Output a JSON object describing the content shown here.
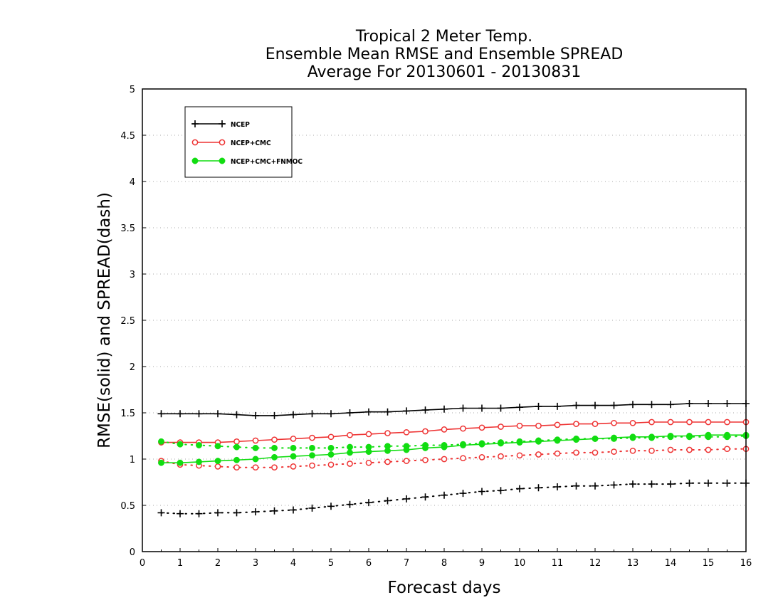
{
  "chart_data": {
    "type": "line",
    "title_lines": [
      "Tropical 2 Meter Temp.",
      "Ensemble Mean RMSE and Ensemble SPREAD",
      "Average For 20130601 - 20130831"
    ],
    "xlabel": "Forecast days",
    "ylabel": "RMSE(solid) and SPREAD(dash)",
    "xlim": [
      0,
      16
    ],
    "ylim": [
      0,
      5
    ],
    "x_ticks": [
      0,
      1,
      2,
      3,
      4,
      5,
      6,
      7,
      8,
      9,
      10,
      11,
      12,
      13,
      14,
      15,
      16
    ],
    "y_ticks": [
      0,
      0.5,
      1,
      1.5,
      2,
      2.5,
      3,
      3.5,
      4,
      4.5,
      5
    ],
    "y_tick_labels": [
      "0",
      "0.5",
      "1",
      "1.5",
      "2",
      "2.5",
      "3",
      "3.5",
      "4",
      "4.5",
      "5"
    ],
    "grid": true,
    "legend_position": "top-left",
    "x": [
      0.5,
      1,
      1.5,
      2,
      2.5,
      3,
      3.5,
      4,
      4.5,
      5,
      5.5,
      6,
      6.5,
      7,
      7.5,
      8,
      8.5,
      9,
      9.5,
      10,
      10.5,
      11,
      11.5,
      12,
      12.5,
      13,
      13.5,
      14,
      14.5,
      15,
      15.5,
      16
    ],
    "series": [
      {
        "name": "NCEP",
        "color": "#000000",
        "marker": "plus",
        "rmse": [
          1.49,
          1.49,
          1.49,
          1.49,
          1.48,
          1.47,
          1.47,
          1.48,
          1.49,
          1.49,
          1.5,
          1.51,
          1.51,
          1.52,
          1.53,
          1.54,
          1.55,
          1.55,
          1.55,
          1.56,
          1.57,
          1.57,
          1.58,
          1.58,
          1.58,
          1.59,
          1.59,
          1.59,
          1.6,
          1.6,
          1.6,
          1.6
        ],
        "spread": [
          0.42,
          0.41,
          0.41,
          0.42,
          0.42,
          0.43,
          0.44,
          0.45,
          0.47,
          0.49,
          0.51,
          0.53,
          0.55,
          0.57,
          0.59,
          0.61,
          0.63,
          0.65,
          0.66,
          0.68,
          0.69,
          0.7,
          0.71,
          0.71,
          0.72,
          0.73,
          0.73,
          0.73,
          0.74,
          0.74,
          0.74,
          0.74
        ]
      },
      {
        "name": "NCEP+CMC",
        "color": "#ee3333",
        "marker": "open-circle",
        "rmse": [
          1.18,
          1.18,
          1.18,
          1.18,
          1.19,
          1.2,
          1.21,
          1.22,
          1.23,
          1.24,
          1.26,
          1.27,
          1.28,
          1.29,
          1.3,
          1.32,
          1.33,
          1.34,
          1.35,
          1.36,
          1.36,
          1.37,
          1.38,
          1.38,
          1.39,
          1.39,
          1.4,
          1.4,
          1.4,
          1.4,
          1.4,
          1.4
        ],
        "spread": [
          0.98,
          0.94,
          0.93,
          0.92,
          0.91,
          0.91,
          0.91,
          0.92,
          0.93,
          0.94,
          0.95,
          0.96,
          0.97,
          0.98,
          0.99,
          1.0,
          1.01,
          1.02,
          1.03,
          1.04,
          1.05,
          1.06,
          1.07,
          1.07,
          1.08,
          1.09,
          1.09,
          1.1,
          1.1,
          1.1,
          1.11,
          1.11
        ]
      },
      {
        "name": "NCEP+CMC+FNMOC",
        "color": "#11dd11",
        "marker": "filled-circle",
        "rmse": [
          0.96,
          0.96,
          0.97,
          0.98,
          0.99,
          1.0,
          1.02,
          1.03,
          1.04,
          1.05,
          1.07,
          1.08,
          1.09,
          1.1,
          1.12,
          1.13,
          1.15,
          1.16,
          1.17,
          1.18,
          1.19,
          1.2,
          1.21,
          1.22,
          1.23,
          1.24,
          1.24,
          1.25,
          1.25,
          1.26,
          1.26,
          1.26
        ],
        "spread": [
          1.19,
          1.16,
          1.15,
          1.14,
          1.13,
          1.12,
          1.12,
          1.12,
          1.12,
          1.12,
          1.13,
          1.13,
          1.14,
          1.14,
          1.15,
          1.15,
          1.16,
          1.17,
          1.18,
          1.19,
          1.2,
          1.21,
          1.22,
          1.22,
          1.22,
          1.23,
          1.23,
          1.24,
          1.24,
          1.24,
          1.24,
          1.25
        ]
      }
    ]
  }
}
